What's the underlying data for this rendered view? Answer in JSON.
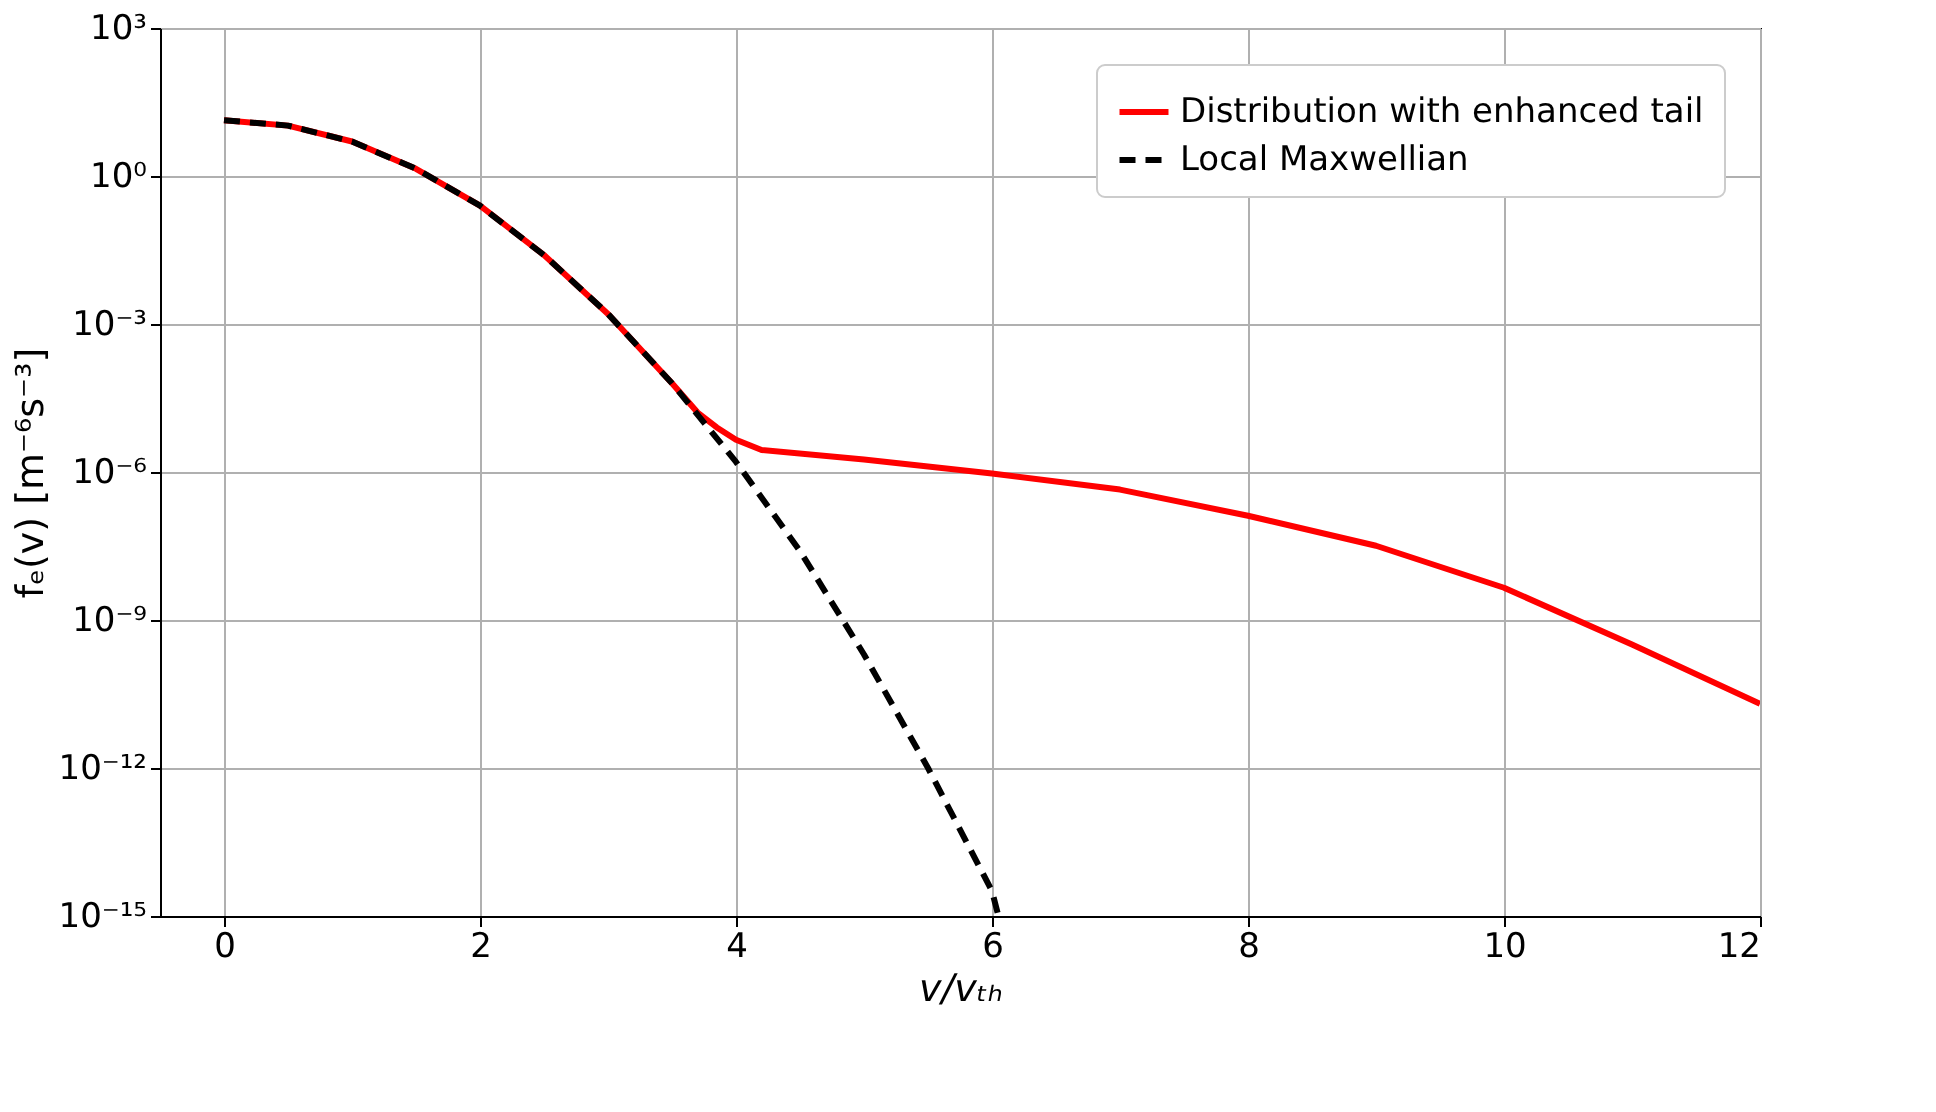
{
  "chart_data": {
    "type": "line",
    "xlabel": "v/vₜₕ",
    "ylabel": "fₑ(v) [m⁻⁶s⁻³]",
    "xlim": [
      -0.5,
      12
    ],
    "xticks": [
      0,
      2,
      4,
      6,
      8,
      10,
      12
    ],
    "ylim": [
      1e-15,
      1000
    ],
    "yticks": [
      {
        "value": 1000,
        "label": "10³"
      },
      {
        "value": 1,
        "label": "10⁰"
      },
      {
        "value": 0.001,
        "label": "10⁻³"
      },
      {
        "value": 1e-06,
        "label": "10⁻⁶"
      },
      {
        "value": 1e-09,
        "label": "10⁻⁹"
      },
      {
        "value": 1e-12,
        "label": "10⁻¹²"
      },
      {
        "value": 1e-15,
        "label": "10⁻¹⁵"
      }
    ],
    "log": "y",
    "grid": true,
    "legend": "top right",
    "series": [
      {
        "name": "Distribution with enhanced tail",
        "color": "#ff0000",
        "line_style": "solid",
        "x": [
          0,
          0.5,
          1,
          1.5,
          2,
          2.5,
          3,
          3.5,
          3.7,
          3.85,
          4,
          4.2,
          5,
          6,
          7,
          8,
          9,
          10,
          11,
          12
        ],
        "values": [
          13.5,
          10.5,
          5.0,
          1.4,
          0.25,
          0.025,
          0.0016,
          6.3e-05,
          1.6e-05,
          8e-06,
          4.5e-06,
          2.8e-06,
          1.8e-06,
          9.3e-07,
          4.4e-07,
          1.3e-07,
          3.2e-08,
          4.5e-09,
          3.2e-10,
          2e-11
        ]
      },
      {
        "name": "Local Maxwellian",
        "color": "#000000",
        "line_style": "dashed",
        "x": [
          0,
          0.5,
          1,
          1.5,
          2,
          2.5,
          3,
          3.5,
          4,
          4.5,
          5,
          5.5,
          6,
          6.05
        ],
        "values": [
          13.5,
          10.5,
          5.0,
          1.4,
          0.25,
          0.025,
          0.0016,
          6.3e-05,
          1.6e-06,
          2.5e-08,
          2e-10,
          1e-12,
          3.2e-15,
          1e-15
        ]
      }
    ]
  }
}
